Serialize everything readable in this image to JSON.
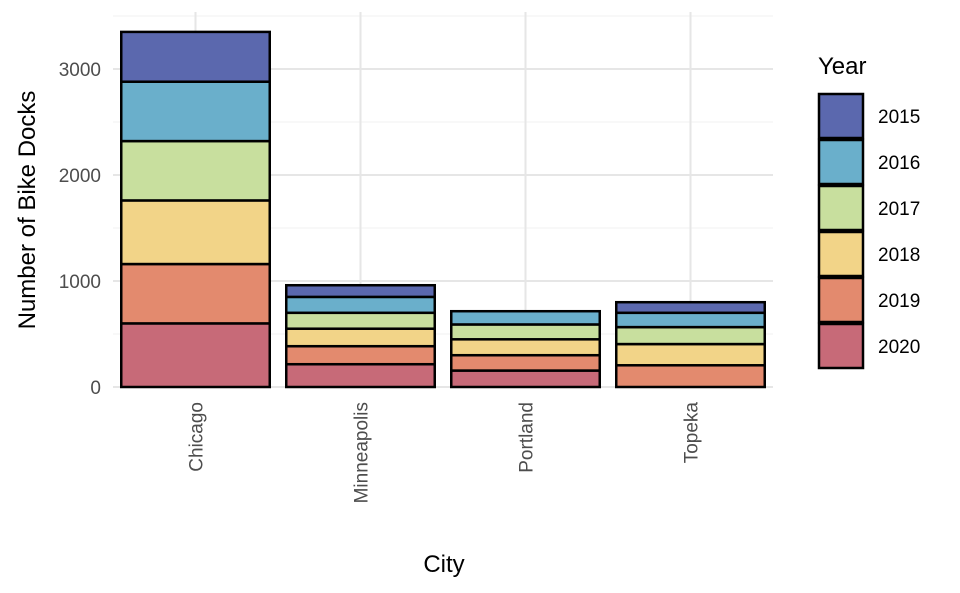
{
  "chart_data": {
    "type": "bar",
    "stacked": true,
    "title": "",
    "xlabel": "City",
    "ylabel": "Number of Bike Docks",
    "categories": [
      "Chicago",
      "Minneapolis",
      "Portland",
      "Topeka"
    ],
    "ylim": [
      0,
      3500
    ],
    "yticks": [
      0,
      1000,
      2000,
      3000
    ],
    "grid": true,
    "legend": {
      "title": "Year",
      "placement": "right"
    },
    "series": [
      {
        "name": "2020",
        "color": "#C76A78",
        "values": [
          600,
          215,
          155,
          0
        ]
      },
      {
        "name": "2019",
        "color": "#E38A6E",
        "values": [
          560,
          170,
          145,
          205
        ]
      },
      {
        "name": "2018",
        "color": "#F2D488",
        "values": [
          600,
          165,
          150,
          200
        ]
      },
      {
        "name": "2017",
        "color": "#C8DF9E",
        "values": [
          560,
          150,
          140,
          160
        ]
      },
      {
        "name": "2016",
        "color": "#6AAFCB",
        "values": [
          560,
          150,
          125,
          135
        ]
      },
      {
        "name": "2015",
        "color": "#5B68AE",
        "values": [
          470,
          110,
          0,
          100
        ]
      }
    ]
  }
}
